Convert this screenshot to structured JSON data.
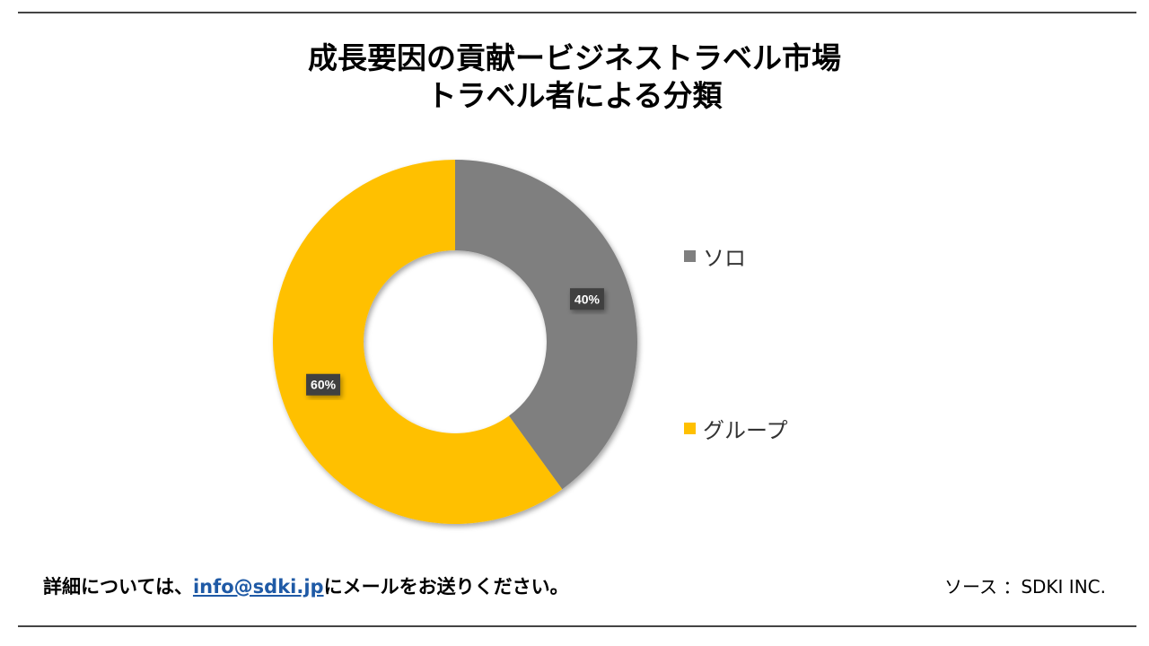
{
  "title": {
    "line1": "成長要因の貢献ービジネストラベル市場",
    "line2": "トラベル者による分類"
  },
  "chart_data": {
    "type": "pie",
    "donut": true,
    "categories": [
      "ソロ",
      "グループ"
    ],
    "values": [
      40,
      60
    ],
    "data_labels": [
      "40%",
      "60%"
    ],
    "colors": [
      "#7f7f7f",
      "#ffc000"
    ],
    "legend_position": "right"
  },
  "legend": [
    {
      "label": "ソロ",
      "color": "#7f7f7f"
    },
    {
      "label": "グループ",
      "color": "#ffc000"
    }
  ],
  "footer": {
    "text_before": "詳細については、",
    "email": "info@sdki.jp",
    "text_after": "にメールをお送りください。",
    "source": "ソース ：SDKI INC."
  }
}
